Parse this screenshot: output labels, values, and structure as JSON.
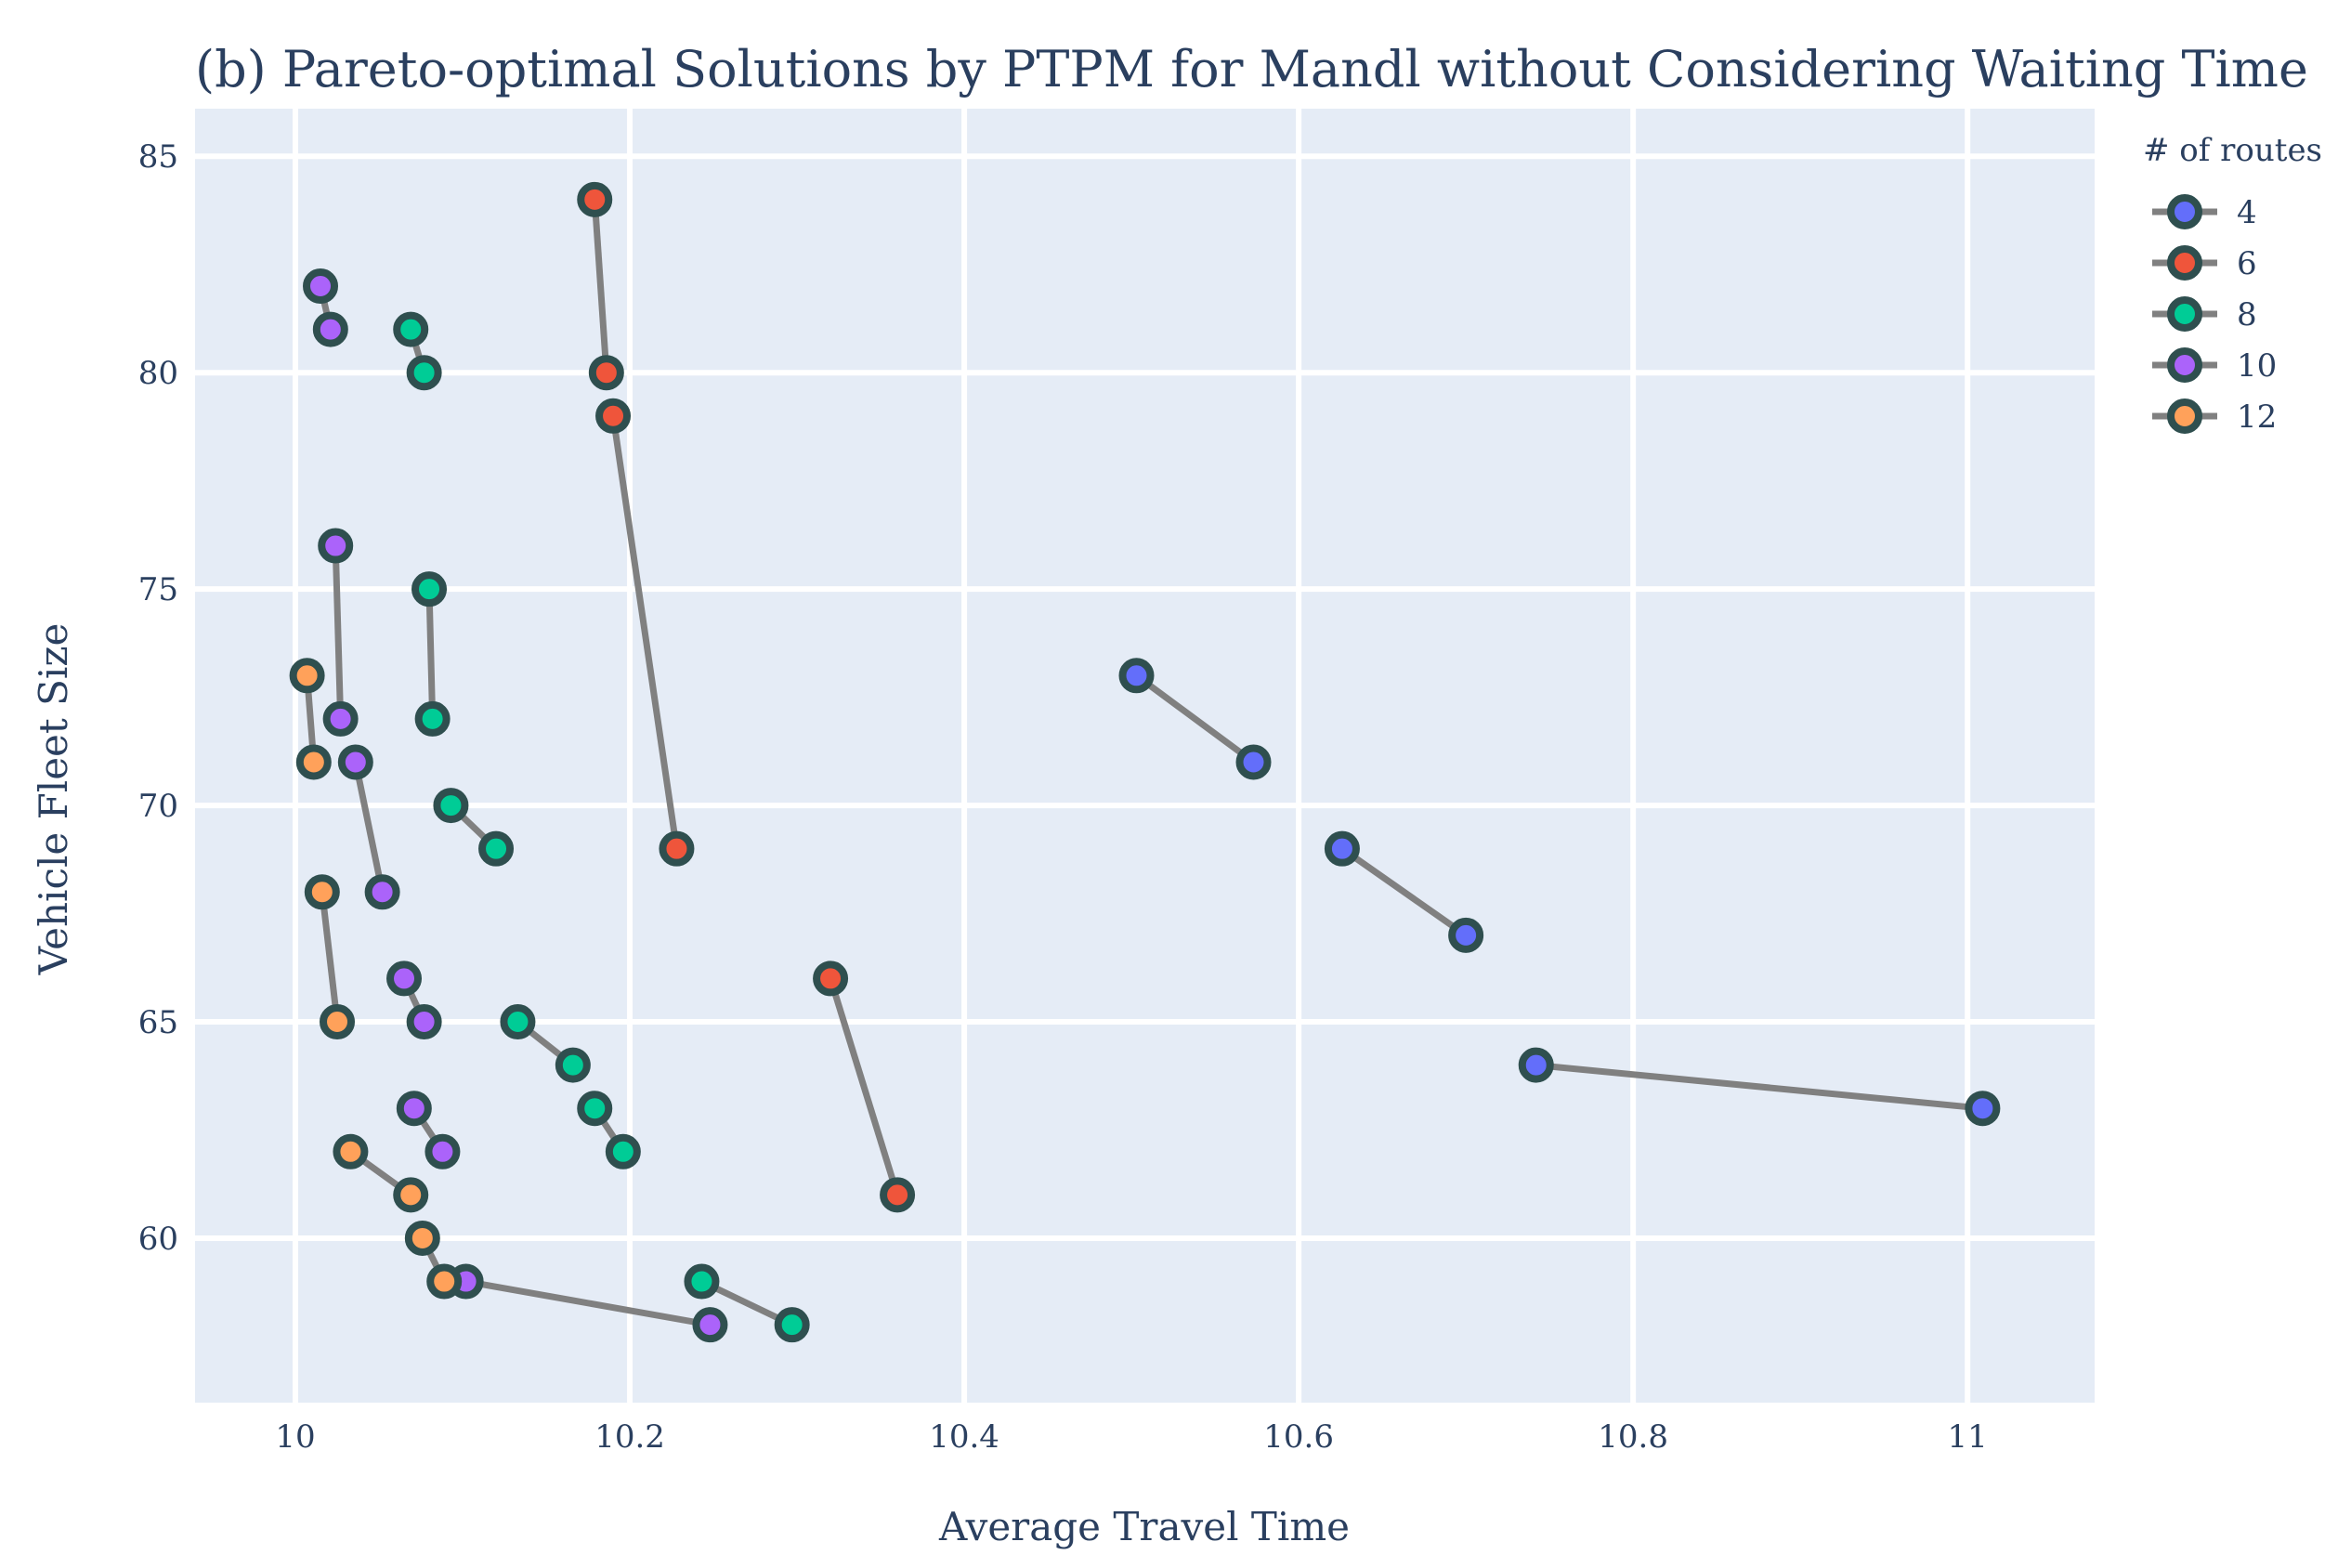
{
  "chart_data": {
    "type": "scatter",
    "title": "(b) Pareto-optimal Solutions by PTPM for Mandl without Considering Waiting Time",
    "xlabel": "Average Travel Time",
    "ylabel": "Vehicle Fleet Size",
    "xlim": [
      9.94,
      11.076
    ],
    "ylim": [
      56.2,
      86.1
    ],
    "xticks": [
      10,
      10.2,
      10.4,
      10.6,
      10.8,
      11
    ],
    "xtick_labels": [
      "10",
      "10.2",
      "10.4",
      "10.6",
      "10.8",
      "11"
    ],
    "yticks": [
      60,
      65,
      70,
      75,
      80,
      85
    ],
    "ytick_labels": [
      "60",
      "65",
      "70",
      "75",
      "80",
      "85"
    ],
    "grid": true,
    "plot_background": "#e5ecf6",
    "line_color": "#808080",
    "marker_outline_color": "#2f4f4f",
    "legend": {
      "title": "# of routes",
      "placement": "top-right outside"
    },
    "series": [
      {
        "name": "4",
        "color": "#636efa",
        "connectors": [
          [
            0,
            1
          ],
          [
            2,
            3
          ],
          [
            4,
            5
          ]
        ],
        "points": [
          [
            10.503,
            73
          ],
          [
            10.573,
            71
          ],
          [
            10.626,
            69
          ],
          [
            10.7,
            67
          ],
          [
            10.742,
            64
          ],
          [
            11.009,
            63
          ]
        ]
      },
      {
        "name": "6",
        "color": "#ef553b",
        "connectors": [
          [
            0,
            1
          ],
          [
            2,
            3
          ],
          [
            4,
            5
          ]
        ],
        "points": [
          [
            10.179,
            84
          ],
          [
            10.186,
            80
          ],
          [
            10.19,
            79
          ],
          [
            10.228,
            69
          ],
          [
            10.32,
            66
          ],
          [
            10.36,
            61
          ]
        ]
      },
      {
        "name": "8",
        "color": "#00cc96",
        "connectors": [
          [
            0,
            1
          ],
          [
            2,
            3
          ],
          [
            4,
            5
          ],
          [
            6,
            7
          ],
          [
            8,
            9
          ],
          [
            10,
            11
          ]
        ],
        "points": [
          [
            10.069,
            81
          ],
          [
            10.077,
            80
          ],
          [
            10.08,
            75
          ],
          [
            10.082,
            72
          ],
          [
            10.093,
            70
          ],
          [
            10.12,
            69
          ],
          [
            10.133,
            65
          ],
          [
            10.166,
            64
          ],
          [
            10.179,
            63
          ],
          [
            10.196,
            62
          ],
          [
            10.243,
            59
          ],
          [
            10.297,
            58
          ]
        ]
      },
      {
        "name": "10",
        "color": "#ab63fa",
        "connectors": [
          [
            0,
            1
          ],
          [
            2,
            3
          ],
          [
            4,
            5
          ],
          [
            6,
            7
          ],
          [
            8,
            9
          ],
          [
            10,
            11
          ]
        ],
        "points": [
          [
            10.015,
            82
          ],
          [
            10.021,
            81
          ],
          [
            10.024,
            76
          ],
          [
            10.027,
            72
          ],
          [
            10.036,
            71
          ],
          [
            10.052,
            68
          ],
          [
            10.065,
            66
          ],
          [
            10.077,
            65
          ],
          [
            10.071,
            63
          ],
          [
            10.088,
            62
          ],
          [
            10.102,
            59
          ],
          [
            10.248,
            58
          ]
        ]
      },
      {
        "name": "12",
        "color": "#ffa15a",
        "connectors": [
          [
            0,
            1
          ],
          [
            2,
            3
          ],
          [
            4,
            5
          ],
          [
            6,
            7
          ]
        ],
        "points": [
          [
            10.007,
            73
          ],
          [
            10.011,
            71
          ],
          [
            10.016,
            68
          ],
          [
            10.025,
            65
          ],
          [
            10.033,
            62
          ],
          [
            10.069,
            61
          ],
          [
            10.076,
            60
          ],
          [
            10.089,
            59
          ]
        ]
      }
    ]
  }
}
